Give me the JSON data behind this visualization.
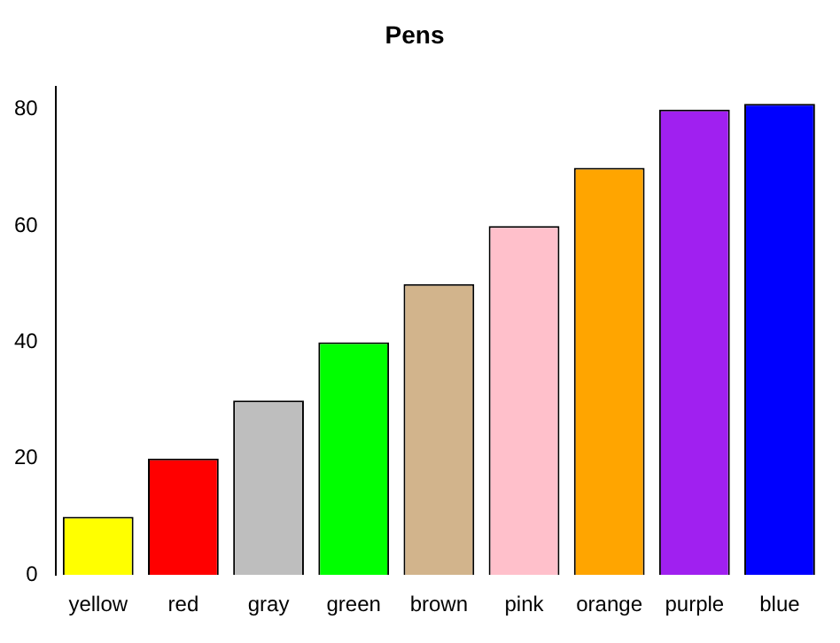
{
  "chart_data": {
    "type": "bar",
    "title": "Pens",
    "categories": [
      "yellow",
      "red",
      "gray",
      "green",
      "brown",
      "pink",
      "orange",
      "purple",
      "blue"
    ],
    "values": [
      10,
      20,
      30,
      40,
      50,
      60,
      70,
      80,
      81
    ],
    "colors": [
      "#ffff00",
      "#ff0000",
      "#bebebe",
      "#00ff00",
      "#d2b48c",
      "#ffc0cb",
      "#ffa500",
      "#a020f0",
      "#0000ff"
    ],
    "ylim": [
      0,
      84
    ],
    "yticks": [
      0,
      20,
      40,
      60,
      80
    ],
    "grid": false,
    "legend": false
  }
}
